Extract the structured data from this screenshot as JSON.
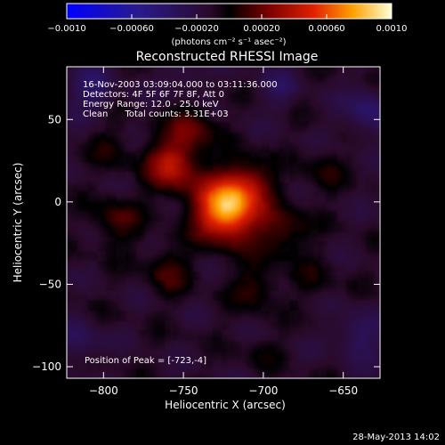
{
  "chart_data": {
    "type": "heatmap",
    "title": "Reconstructed RHESSI Image",
    "xlabel": "Heliocentric X (arcsec)",
    "ylabel": "Heliocentric Y (arcsec)",
    "xlim": [
      -823,
      -627
    ],
    "ylim": [
      -107,
      82
    ],
    "x_ticks": [
      -800,
      -750,
      -700,
      -650
    ],
    "y_ticks": [
      -100,
      -50,
      0,
      50
    ],
    "grid": false,
    "colorbar": {
      "position": "top",
      "range": [
        -0.001,
        0.001
      ],
      "tick_values": [
        -0.001,
        -0.0006,
        -0.0002,
        0.0002,
        0.0006,
        0.001
      ],
      "tick_labels": [
        "−0.0010",
        "−0.00060",
        "−0.00020",
        "0.00020",
        "0.00060",
        "0.0010"
      ],
      "unit_label": "(photons cm⁻² s⁻¹ asec⁻²)"
    },
    "annotations": [
      "16-Nov-2003 03:09:04.000 to 03:11:36.000",
      "Detectors: 4F 5F 6F 7F 8F, Att 0",
      "Energy Range: 12.0 - 25.0 keV",
      "Clean      Total counts: 3.31E+03",
      "Position of Peak = [-723,-4]"
    ],
    "peak": {
      "x": -723,
      "y": -4,
      "value": 0.001
    },
    "sources": [
      {
        "x": -723,
        "y": -4,
        "value": 0.001,
        "sigma": 13
      },
      {
        "x": -757,
        "y": 22,
        "value": 0.00052,
        "sigma": 11
      },
      {
        "x": -745,
        "y": 45,
        "value": 0.00028,
        "sigma": 10
      },
      {
        "x": -708,
        "y": 12,
        "value": 0.0003,
        "sigma": 10
      },
      {
        "x": -688,
        "y": -18,
        "value": 0.00026,
        "sigma": 11
      },
      {
        "x": -792,
        "y": -12,
        "value": 0.00024,
        "sigma": 10
      },
      {
        "x": -760,
        "y": -42,
        "value": 0.00022,
        "sigma": 10
      },
      {
        "x": -705,
        "y": -52,
        "value": 0.0002,
        "sigma": 10
      },
      {
        "x": -795,
        "y": 32,
        "value": 0.00014,
        "sigma": 9
      },
      {
        "x": -662,
        "y": 18,
        "value": 0.00015,
        "sigma": 9
      },
      {
        "x": -668,
        "y": -48,
        "value": 0.00012,
        "sigma": 9
      },
      {
        "x": -700,
        "y": -92,
        "value": 0.0001,
        "sigma": 8
      },
      {
        "x": -808,
        "y": 68,
        "value": -0.00024,
        "sigma": 10
      },
      {
        "x": -635,
        "y": 55,
        "value": -0.00026,
        "sigma": 10
      },
      {
        "x": -640,
        "y": -82,
        "value": -0.00022,
        "sigma": 10
      },
      {
        "x": -815,
        "y": -85,
        "value": -0.00018,
        "sigma": 9
      },
      {
        "x": -748,
        "y": 76,
        "value": -0.00014,
        "sigma": 9
      },
      {
        "x": -690,
        "y": 70,
        "value": -0.00016,
        "sigma": 9
      }
    ]
  },
  "footer": {
    "timestamp": "28-May-2013 14:02"
  }
}
